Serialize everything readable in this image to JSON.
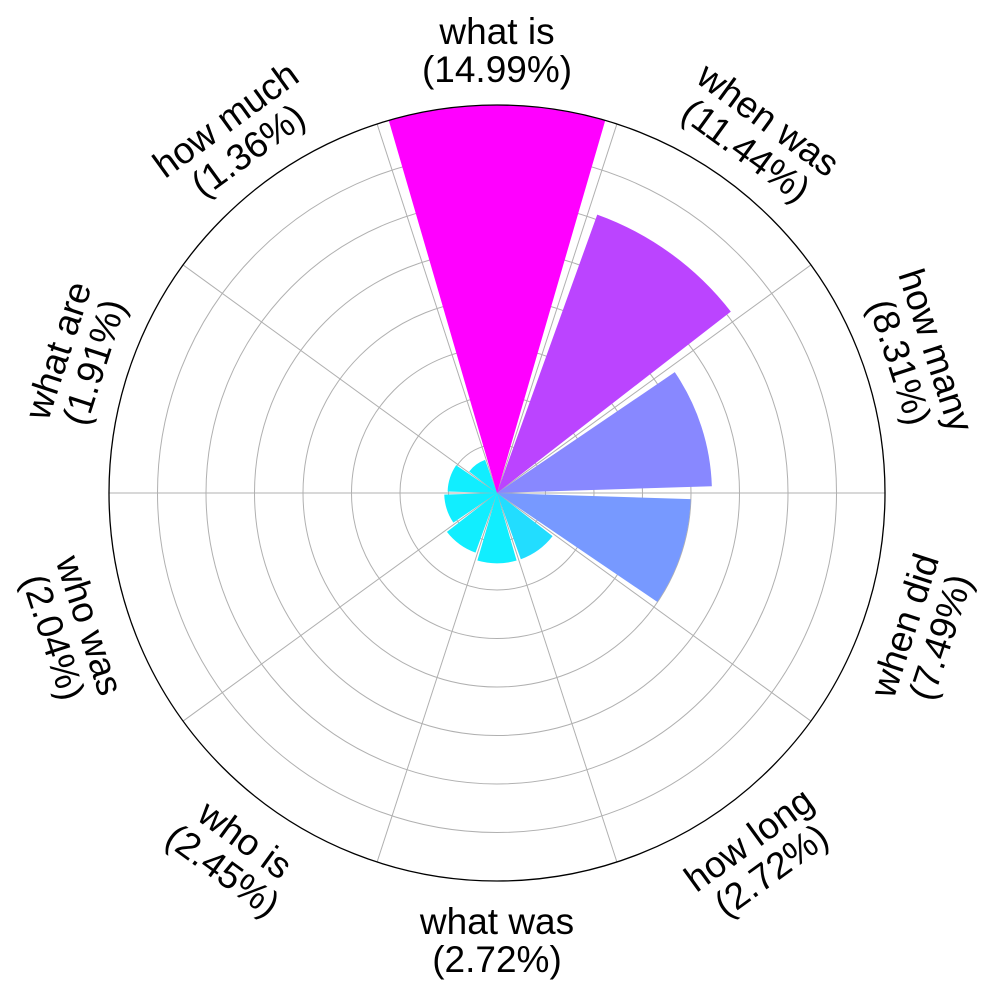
{
  "chart_data": {
    "type": "polar-bar",
    "categories": [
      "what is",
      "when was",
      "how many",
      "when did",
      "how long",
      "what was",
      "who is",
      "who was",
      "what are",
      "how much"
    ],
    "values": [
      14.99,
      11.44,
      8.31,
      7.49,
      2.72,
      2.72,
      2.45,
      2.04,
      1.91,
      1.36
    ],
    "labels": [
      "(14.99%)",
      "(11.44%)",
      "(8.31%)",
      "(7.49%)",
      "(2.72%)",
      "(2.72%)",
      "(2.45%)",
      "(2.04%)",
      "(1.91%)",
      "(1.36%)"
    ],
    "colors": [
      "#ff00ff",
      "#bb44ff",
      "#8888ff",
      "#7799ff",
      "#22ddff",
      "#11eeff",
      "#11eeff",
      "#11eeff",
      "#11eeff",
      "#11eeff"
    ],
    "rlim": [
      0,
      15
    ],
    "grid": true,
    "unit": "%",
    "direction": "clockwise",
    "start": "top"
  }
}
